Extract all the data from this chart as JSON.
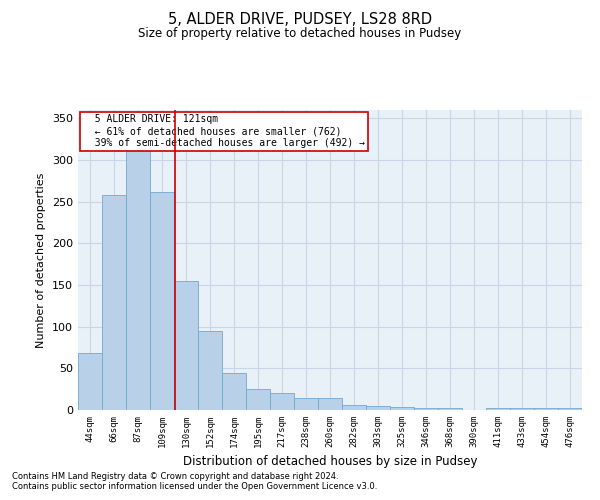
{
  "title": "5, ALDER DRIVE, PUDSEY, LS28 8RD",
  "subtitle": "Size of property relative to detached houses in Pudsey",
  "xlabel": "Distribution of detached houses by size in Pudsey",
  "ylabel": "Number of detached properties",
  "footnote1": "Contains HM Land Registry data © Crown copyright and database right 2024.",
  "footnote2": "Contains public sector information licensed under the Open Government Licence v3.0.",
  "annotation_line1": "5 ALDER DRIVE: 121sqm",
  "annotation_line2": "← 61% of detached houses are smaller (762)",
  "annotation_line3": "39% of semi-detached houses are larger (492) →",
  "bar_color": "#b8d0e8",
  "bar_edge_color": "#6fa8d4",
  "redline_color": "#cc0000",
  "annotation_box_edge": "#cc0000",
  "grid_color": "#c8d4e8",
  "background_color": "#e8f0f8",
  "categories": [
    "44sqm",
    "66sqm",
    "87sqm",
    "109sqm",
    "130sqm",
    "152sqm",
    "174sqm",
    "195sqm",
    "217sqm",
    "238sqm",
    "260sqm",
    "282sqm",
    "303sqm",
    "325sqm",
    "346sqm",
    "368sqm",
    "390sqm",
    "411sqm",
    "433sqm",
    "454sqm",
    "476sqm"
  ],
  "values": [
    68,
    258,
    325,
    262,
    155,
    95,
    45,
    25,
    20,
    14,
    14,
    6,
    5,
    4,
    3,
    2,
    0,
    2,
    2,
    2,
    2
  ],
  "redline_index": 3.55,
  "ylim": [
    0,
    360
  ],
  "yticks": [
    0,
    50,
    100,
    150,
    200,
    250,
    300,
    350
  ],
  "figsize": [
    6.0,
    5.0
  ],
  "dpi": 100
}
